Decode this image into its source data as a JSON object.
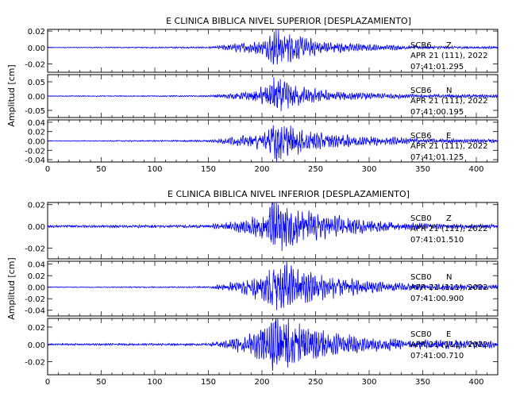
{
  "chart_data": [
    {
      "type": "line",
      "title": "E CLINICA BIBLICA NIVEL SUPERIOR [DESPLAZAMIENTO]",
      "ylabel": "Amplitud [cm]",
      "xlim": [
        0,
        420
      ],
      "x_ticks": [
        "0",
        "50",
        "100",
        "150",
        "200",
        "250",
        "300",
        "350",
        "400"
      ],
      "line_color": "#0000ff",
      "grid": false,
      "series": [
        {
          "name": "SCB6 Z",
          "station": "SCB6",
          "component": "Z",
          "date": "APR 21 (111), 2022",
          "time": "07:41:01.295",
          "ylim": [
            -0.03,
            0.022
          ],
          "y_ticks": [
            "0.02",
            "0.00",
            "-0.02"
          ],
          "envelope": [
            [
              0,
              0.0003
            ],
            [
              150,
              0.0008
            ],
            [
              170,
              0.003
            ],
            [
              190,
              0.005
            ],
            [
              205,
              0.008
            ],
            [
              212,
              0.019
            ],
            [
              220,
              0.016
            ],
            [
              230,
              0.012
            ],
            [
              250,
              0.007
            ],
            [
              280,
              0.004
            ],
            [
              310,
              0.0025
            ],
            [
              350,
              0.0015
            ],
            [
              420,
              0.001
            ]
          ]
        },
        {
          "name": "SCB6 N",
          "station": "SCB6",
          "component": "N",
          "date": "APR 21 (111), 2022",
          "time": "07:41:00.195",
          "ylim": [
            -0.075,
            0.075
          ],
          "y_ticks": [
            "0.05",
            "0.00",
            "-0.05"
          ],
          "envelope": [
            [
              0,
              0.001
            ],
            [
              150,
              0.002
            ],
            [
              170,
              0.007
            ],
            [
              190,
              0.012
            ],
            [
              205,
              0.03
            ],
            [
              212,
              0.058
            ],
            [
              220,
              0.04
            ],
            [
              235,
              0.025
            ],
            [
              260,
              0.015
            ],
            [
              300,
              0.008
            ],
            [
              350,
              0.005
            ],
            [
              420,
              0.004
            ]
          ]
        },
        {
          "name": "SCB6 E",
          "station": "SCB6",
          "component": "E",
          "date": "APR 21 (111), 2022",
          "time": "07:41:01.125",
          "ylim": [
            -0.045,
            0.045
          ],
          "y_ticks": [
            "0.04",
            "0.02",
            "0.00",
            "-0.02",
            "-0.04"
          ],
          "envelope": [
            [
              0,
              0.0005
            ],
            [
              150,
              0.0015
            ],
            [
              170,
              0.006
            ],
            [
              190,
              0.01
            ],
            [
              205,
              0.018
            ],
            [
              212,
              0.035
            ],
            [
              220,
              0.028
            ],
            [
              235,
              0.02
            ],
            [
              260,
              0.012
            ],
            [
              300,
              0.008
            ],
            [
              350,
              0.004
            ],
            [
              420,
              0.003
            ]
          ]
        }
      ],
      "xaxis_tick_labels_shown": true
    },
    {
      "type": "line",
      "title": "E CLINICA BIBLICA NIVEL INFERIOR [DESPLAZAMIENTO]",
      "ylabel": "Amplitud [cm]",
      "xlim": [
        0,
        420
      ],
      "x_ticks": [
        "0",
        "50",
        "100",
        "150",
        "200",
        "250",
        "300",
        "350",
        "400"
      ],
      "line_color": "#0000ff",
      "grid": false,
      "series": [
        {
          "name": "SCB0 Z",
          "station": "SCB0",
          "component": "Z",
          "date": "APR 21 (111), 2022",
          "time": "07:41:01.510",
          "ylim": [
            -0.03,
            0.022
          ],
          "y_ticks": [
            "0.02",
            "0.00",
            "-0.02"
          ],
          "envelope": [
            [
              0,
              0.0008
            ],
            [
              150,
              0.001
            ],
            [
              170,
              0.003
            ],
            [
              190,
              0.006
            ],
            [
              205,
              0.01
            ],
            [
              212,
              0.022
            ],
            [
              222,
              0.018
            ],
            [
              235,
              0.012
            ],
            [
              260,
              0.008
            ],
            [
              300,
              0.004
            ],
            [
              350,
              0.002
            ],
            [
              420,
              0.0015
            ]
          ]
        },
        {
          "name": "SCB0 N",
          "station": "SCB0",
          "component": "N",
          "date": "APR 21 (111), 2022",
          "time": "07:41:00.900",
          "ylim": [
            -0.05,
            0.045
          ],
          "y_ticks": [
            "0.04",
            "0.02",
            "0.00",
            "-0.02",
            "-0.04"
          ],
          "envelope": [
            [
              0,
              0.0005
            ],
            [
              150,
              0.001
            ],
            [
              170,
              0.006
            ],
            [
              190,
              0.012
            ],
            [
              205,
              0.022
            ],
            [
              212,
              0.04
            ],
            [
              220,
              0.035
            ],
            [
              235,
              0.025
            ],
            [
              260,
              0.015
            ],
            [
              300,
              0.008
            ],
            [
              350,
              0.004
            ],
            [
              420,
              0.003
            ]
          ]
        },
        {
          "name": "SCB0 E",
          "station": "SCB0",
          "component": "E",
          "date": "APR 21 (111), 2022",
          "time": "07:41:00.710",
          "ylim": [
            -0.035,
            0.03
          ],
          "y_ticks": [
            "0.02",
            "0.00",
            "-0.02"
          ],
          "envelope": [
            [
              0,
              0.0008
            ],
            [
              150,
              0.001
            ],
            [
              170,
              0.005
            ],
            [
              190,
              0.01
            ],
            [
              205,
              0.017
            ],
            [
              212,
              0.028
            ],
            [
              222,
              0.025
            ],
            [
              235,
              0.018
            ],
            [
              260,
              0.011
            ],
            [
              300,
              0.006
            ],
            [
              350,
              0.004
            ],
            [
              420,
              0.003
            ]
          ]
        }
      ],
      "xaxis_tick_labels_shown": true
    }
  ]
}
